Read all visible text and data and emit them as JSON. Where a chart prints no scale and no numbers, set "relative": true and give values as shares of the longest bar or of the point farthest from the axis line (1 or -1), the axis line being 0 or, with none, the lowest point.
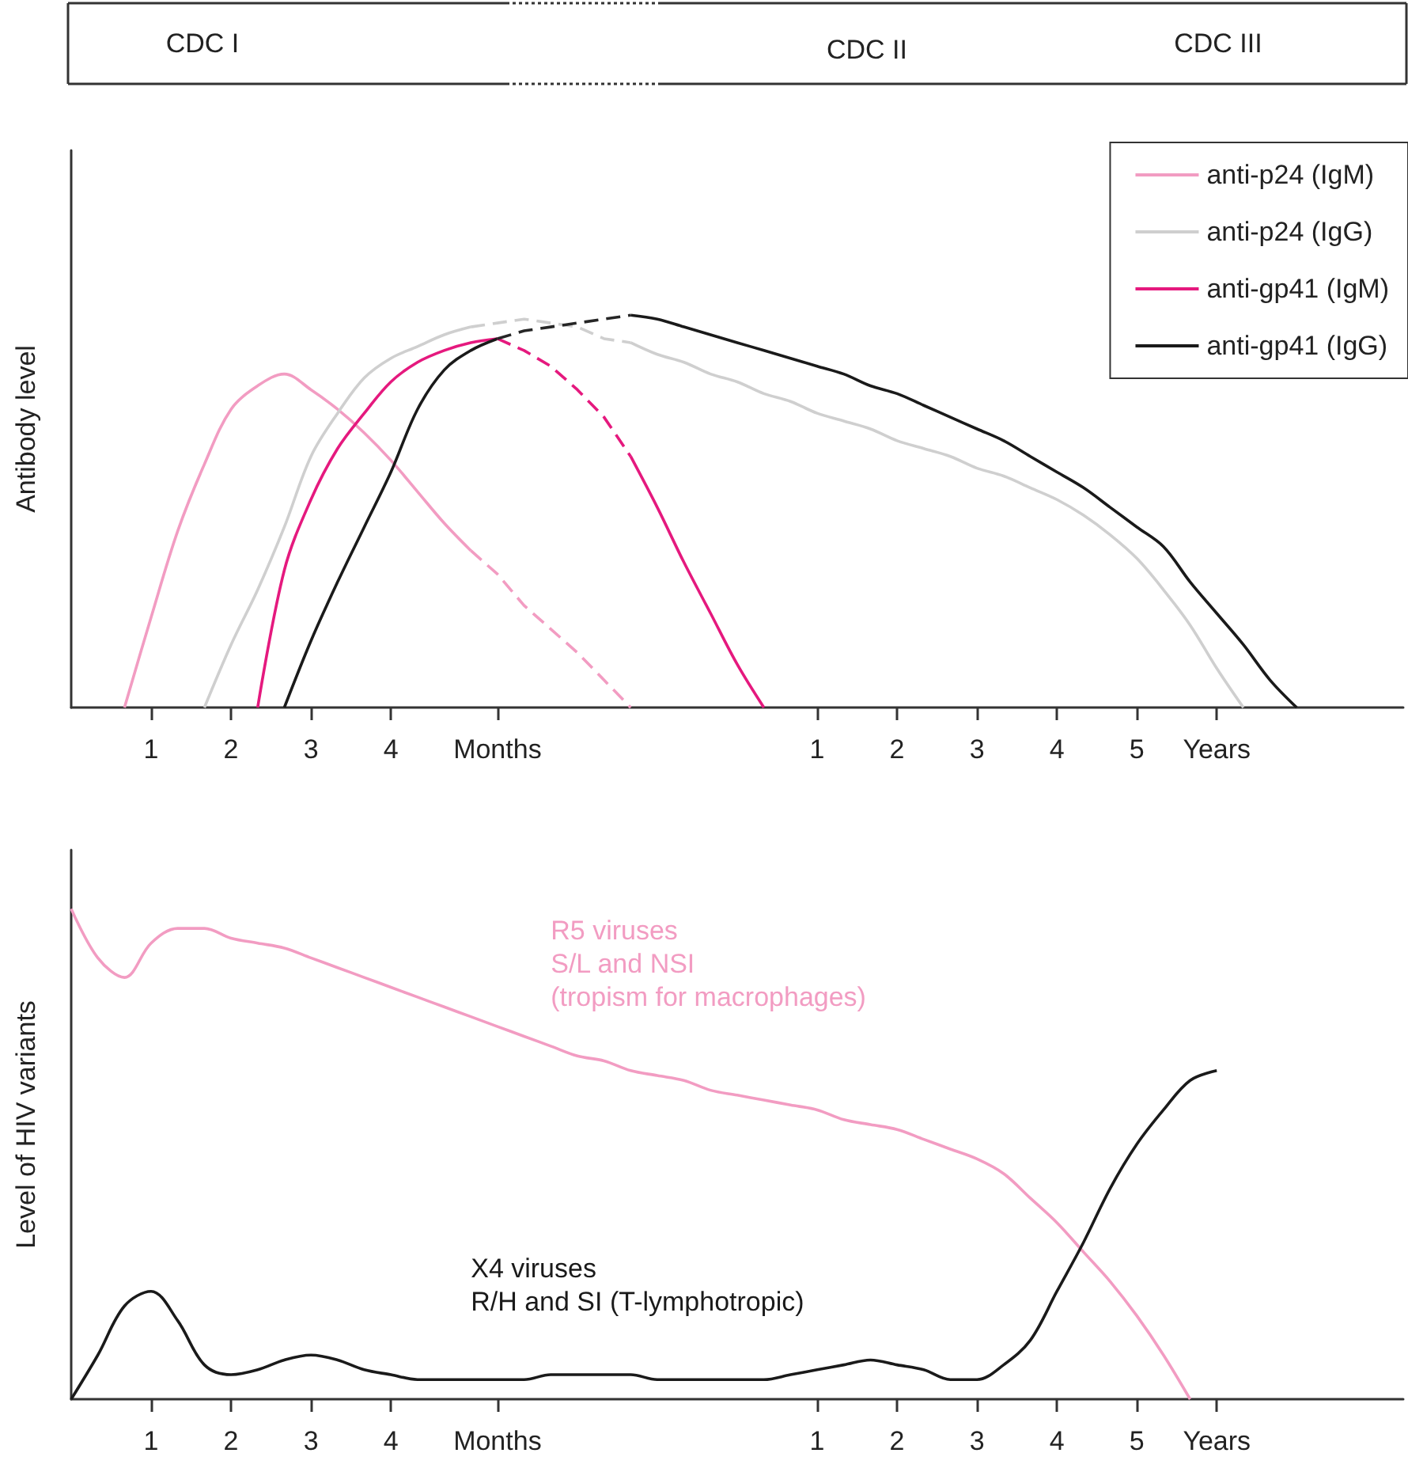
{
  "chart_data": [
    {
      "type": "other",
      "annotations": [
        "CDC I",
        "CDC II",
        "CDC III"
      ]
    },
    {
      "type": "line",
      "ylabel": "Antibody level",
      "relative": true,
      "marker": "none",
      "legend": "top right",
      "categories": [
        null,
        null,
        null,
        "1",
        null,
        null,
        "2",
        null,
        null,
        "3",
        null,
        null,
        "4",
        null,
        null,
        null,
        "Months",
        null,
        null,
        null,
        null,
        null,
        null,
        null,
        null,
        null,
        null,
        null,
        "1",
        null,
        null,
        "2",
        null,
        null,
        "3",
        null,
        null,
        "4",
        null,
        null,
        "5",
        null,
        null,
        "Years",
        null,
        null,
        null,
        null,
        null,
        null,
        null
      ],
      "series": [
        {
          "name": "anti-p24 (IgM)",
          "color": "#f29cc2",
          "values": [
            null,
            null,
            0,
            0.23,
            0.45,
            0.62,
            0.76,
            0.82,
            0.85,
            0.81,
            0.76,
            0.7,
            0.63,
            0.55,
            0.47,
            0.4,
            null,
            null,
            null,
            null,
            null,
            null,
            null,
            null,
            null,
            null,
            null,
            null,
            null,
            null,
            null,
            null,
            null,
            null,
            null,
            null,
            null,
            null,
            null,
            null,
            null,
            null,
            null,
            null,
            null,
            null,
            null,
            null,
            null,
            null,
            null
          ]
        },
        {
          "name": "anti-p24 (IgG)",
          "color": "#cfcfcf",
          "values": [
            null,
            null,
            null,
            null,
            null,
            0,
            0.16,
            0.3,
            0.46,
            0.64,
            0.75,
            0.84,
            0.89,
            0.92,
            0.95,
            0.97,
            null,
            null,
            null,
            null,
            null,
            0.93,
            0.9,
            0.88,
            0.85,
            0.83,
            0.8,
            0.78,
            0.75,
            0.73,
            0.71,
            0.68,
            0.66,
            0.64,
            0.61,
            0.59,
            0.56,
            0.53,
            0.49,
            0.44,
            0.38,
            0.3,
            0.21,
            0.1,
            0,
            null,
            null,
            null,
            null,
            null,
            null
          ]
        },
        {
          "name": "anti-gp41 (IgM)",
          "color": "#e5197e",
          "values": [
            null,
            null,
            null,
            null,
            null,
            null,
            null,
            0,
            0.35,
            0.53,
            0.66,
            0.75,
            0.83,
            0.88,
            0.91,
            0.93,
            0.94,
            null,
            null,
            null,
            null,
            0.64,
            0.51,
            0.37,
            0.24,
            0.11,
            0,
            null,
            null,
            null,
            null,
            null,
            null,
            null,
            null,
            null,
            null,
            null,
            null,
            null,
            null,
            null,
            null,
            null,
            null,
            null,
            null,
            null,
            null,
            null,
            null
          ]
        },
        {
          "name": "anti-gp41 (IgG)",
          "color": "#1a1a1a",
          "values": [
            null,
            null,
            null,
            null,
            null,
            null,
            null,
            null,
            0,
            0.17,
            0.32,
            0.46,
            0.6,
            0.76,
            0.86,
            0.91,
            0.94,
            null,
            null,
            null,
            null,
            1.0,
            0.99,
            0.97,
            0.95,
            0.93,
            0.91,
            0.89,
            0.87,
            0.85,
            0.82,
            0.8,
            0.77,
            0.74,
            0.71,
            0.68,
            0.64,
            0.6,
            0.56,
            0.51,
            0.46,
            0.41,
            0.32,
            0.24,
            0.16,
            0.07,
            0,
            null,
            null,
            null,
            null
          ]
        },
        {
          "color": "#f29cc2",
          "line_style": "dashed",
          "values": [
            null,
            null,
            null,
            null,
            null,
            null,
            null,
            null,
            null,
            null,
            null,
            null,
            null,
            null,
            null,
            0.4,
            0.34,
            0.26,
            0.2,
            0.14,
            0.07,
            0,
            null,
            null,
            null,
            null,
            null,
            null,
            null,
            null,
            null,
            null,
            null,
            null,
            null,
            null,
            null,
            null,
            null,
            null,
            null,
            null,
            null,
            null,
            null,
            null,
            null,
            null,
            null,
            null,
            null
          ]
        },
        {
          "color": "#cfcfcf",
          "line_style": "dashed",
          "values": [
            null,
            null,
            null,
            null,
            null,
            null,
            null,
            null,
            null,
            null,
            null,
            null,
            null,
            null,
            null,
            0.97,
            0.98,
            0.99,
            0.98,
            0.97,
            0.94,
            0.93,
            null,
            null,
            null,
            null,
            null,
            null,
            null,
            null,
            null,
            null,
            null,
            null,
            null,
            null,
            null,
            null,
            null,
            null,
            null,
            null,
            null,
            null,
            null,
            null,
            null,
            null,
            null,
            null,
            null
          ]
        },
        {
          "color": "#e5197e",
          "line_style": "dashed",
          "values": [
            null,
            null,
            null,
            null,
            null,
            null,
            null,
            null,
            null,
            null,
            null,
            null,
            null,
            null,
            null,
            null,
            0.94,
            0.91,
            0.87,
            0.81,
            0.74,
            0.64,
            null,
            null,
            null,
            null,
            null,
            null,
            null,
            null,
            null,
            null,
            null,
            null,
            null,
            null,
            null,
            null,
            null,
            null,
            null,
            null,
            null,
            null,
            null,
            null,
            null,
            null,
            null,
            null,
            null
          ]
        },
        {
          "color": "#262626",
          "line_style": "dashed",
          "values": [
            null,
            null,
            null,
            null,
            null,
            null,
            null,
            null,
            null,
            null,
            null,
            null,
            null,
            null,
            null,
            null,
            0.94,
            0.96,
            0.97,
            0.98,
            0.99,
            1.0,
            null,
            null,
            null,
            null,
            null,
            null,
            null,
            null,
            null,
            null,
            null,
            null,
            null,
            null,
            null,
            null,
            null,
            null,
            null,
            null,
            null,
            null,
            null,
            null,
            null,
            null,
            null,
            null,
            null
          ]
        }
      ]
    },
    {
      "type": "line",
      "ylabel": "Level of HIV variants",
      "relative": true,
      "marker": "none",
      "categories": [
        null,
        null,
        null,
        "1",
        null,
        null,
        "2",
        null,
        null,
        "3",
        null,
        null,
        "4",
        null,
        null,
        null,
        "Months",
        null,
        null,
        null,
        null,
        null,
        null,
        null,
        null,
        null,
        null,
        null,
        "1",
        null,
        null,
        "2",
        null,
        null,
        "3",
        null,
        null,
        "4",
        null,
        null,
        "5",
        null,
        null,
        "Years",
        null,
        null,
        null,
        null,
        null,
        null,
        null
      ],
      "series": [
        {
          "name": "R5 viruses\nS/L and NSI\n(tropism for macrophages)",
          "color": "#f29cc2",
          "values": [
            1.0,
            0.9,
            0.86,
            0.93,
            0.96,
            0.96,
            0.94,
            0.93,
            0.92,
            0.9,
            0.88,
            0.86,
            0.84,
            0.82,
            0.8,
            0.78,
            0.76,
            0.74,
            0.72,
            0.7,
            0.69,
            0.67,
            0.66,
            0.65,
            0.63,
            0.62,
            0.61,
            0.6,
            0.59,
            0.57,
            0.56,
            0.55,
            0.53,
            0.51,
            0.49,
            0.46,
            0.41,
            0.36,
            0.3,
            0.24,
            0.17,
            0.09,
            0,
            null,
            null,
            null,
            null,
            null,
            null,
            null,
            null
          ]
        },
        {
          "name": "X4 viruses\nR/H and SI (T-lymphotropic)",
          "color": "#1a1a1a",
          "values": [
            0,
            0.09,
            0.19,
            0.22,
            0.16,
            0.07,
            0.05,
            0.06,
            0.08,
            0.09,
            0.08,
            0.06,
            0.05,
            0.04,
            0.04,
            0.04,
            0.04,
            0.04,
            0.05,
            0.05,
            0.05,
            0.05,
            0.04,
            0.04,
            0.04,
            0.04,
            0.04,
            0.05,
            0.06,
            0.07,
            0.08,
            0.07,
            0.06,
            0.04,
            0.04,
            0.07,
            0.12,
            0.22,
            0.32,
            0.43,
            0.52,
            0.59,
            0.65,
            0.67,
            null,
            null,
            null,
            null,
            null,
            null,
            null
          ]
        }
      ]
    }
  ]
}
